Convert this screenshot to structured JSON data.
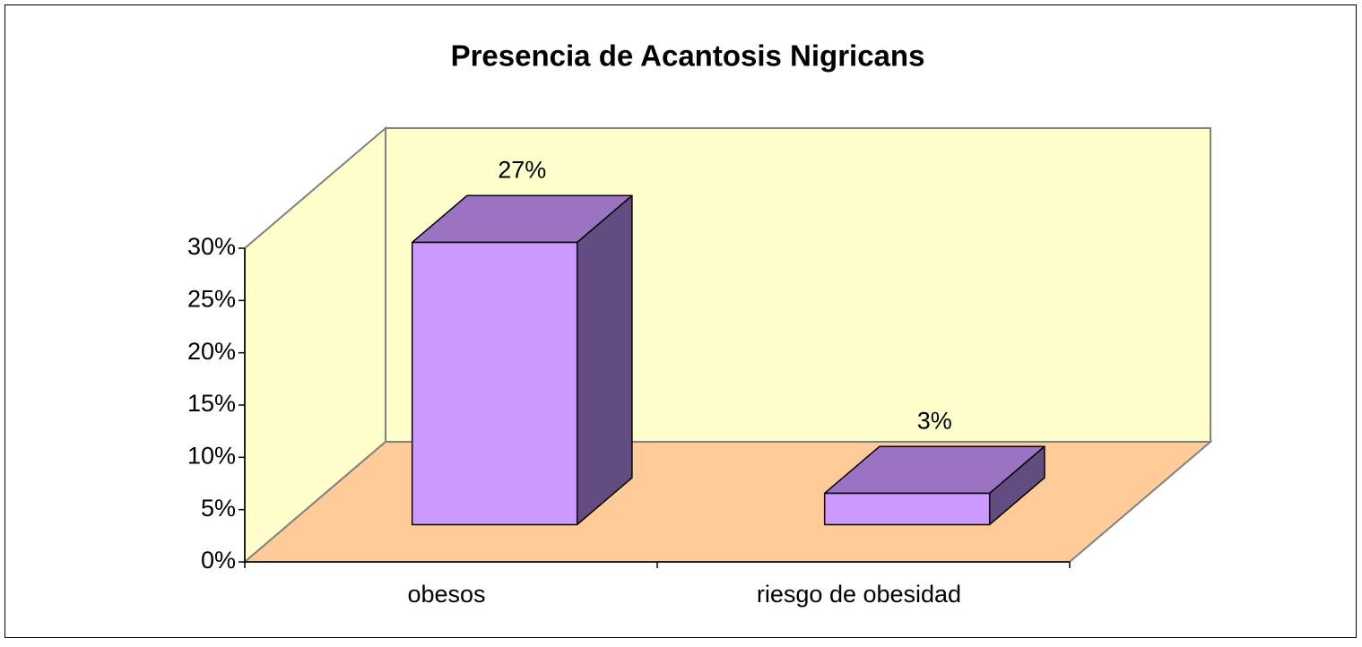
{
  "chart_data": {
    "type": "bar3d",
    "title": "Presencia de Acantosis Nigricans",
    "categories": [
      "obesos",
      "riesgo de obesidad"
    ],
    "values": [
      27,
      3
    ],
    "value_labels": [
      "27%",
      "3%"
    ],
    "color": "#cc99ff",
    "ylim": [
      0,
      30
    ],
    "yticks": [
      {
        "value": 0,
        "label": "0%"
      },
      {
        "value": 5,
        "label": "5%"
      },
      {
        "value": 10,
        "label": "10%"
      },
      {
        "value": 15,
        "label": "15%"
      },
      {
        "value": 20,
        "label": "20%"
      },
      {
        "value": 25,
        "label": "25%"
      },
      {
        "value": 30,
        "label": "30%"
      }
    ],
    "grid": false
  }
}
